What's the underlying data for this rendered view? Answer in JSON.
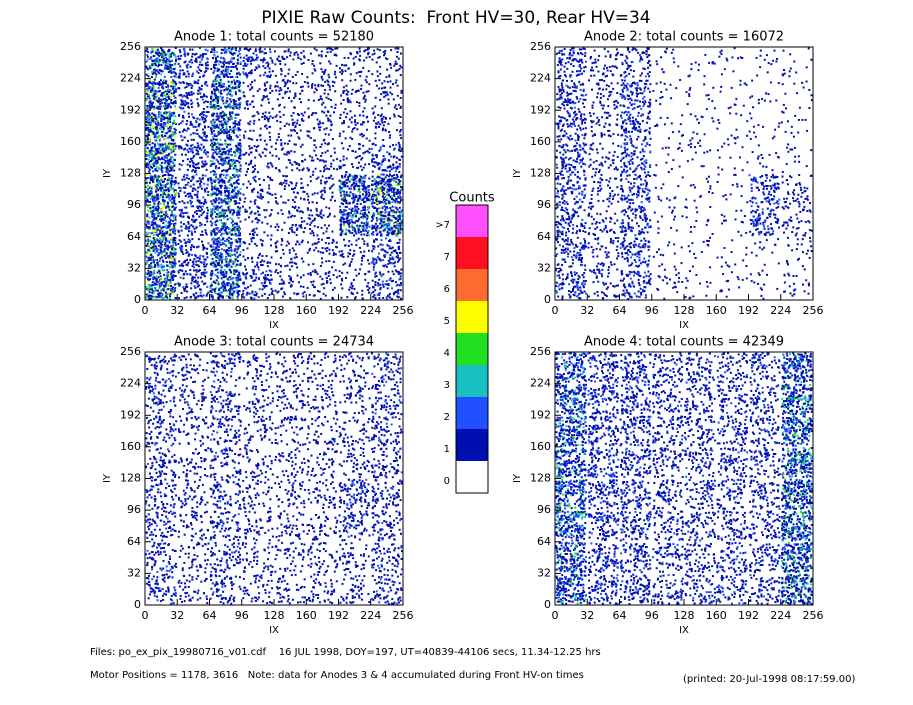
{
  "title": "PIXIE Raw Counts:  Front HV=30, Rear HV=34",
  "chart_data": [
    {
      "type": "heatmap",
      "title": "Anode 1: total counts = 52180",
      "xlabel": "IX",
      "ylabel": "IY",
      "xlim": [
        0,
        256
      ],
      "ylim": [
        0,
        256
      ],
      "xticks": [
        0,
        32,
        64,
        96,
        128,
        160,
        192,
        224,
        256
      ],
      "yticks": [
        0,
        32,
        64,
        96,
        128,
        160,
        192,
        224,
        256
      ],
      "values": [
        [
          5,
          2,
          4,
          2,
          1,
          1,
          1,
          2
        ],
        [
          5,
          2,
          4,
          1,
          1,
          1,
          1,
          2
        ],
        [
          5,
          2,
          4,
          1,
          1,
          1,
          4,
          5
        ],
        [
          5,
          2,
          4,
          1,
          1,
          1,
          4,
          5
        ],
        [
          5,
          2,
          4,
          1,
          1,
          1,
          1,
          2
        ],
        [
          5,
          2,
          4,
          1,
          1,
          1,
          1,
          1
        ],
        [
          5,
          2,
          4,
          1,
          1,
          1,
          1,
          1
        ],
        [
          4,
          2,
          3,
          2,
          1,
          1,
          1,
          1
        ]
      ]
    },
    {
      "type": "heatmap",
      "title": "Anode 2: total counts = 16072",
      "xlabel": "IX",
      "ylabel": "IY",
      "xlim": [
        0,
        256
      ],
      "ylim": [
        0,
        256
      ],
      "xticks": [
        0,
        32,
        64,
        96,
        128,
        160,
        192,
        224,
        256
      ],
      "yticks": [
        0,
        32,
        64,
        96,
        128,
        160,
        192,
        224,
        256
      ],
      "values": [
        [
          2,
          1,
          2,
          0.5,
          0.3,
          0.3,
          0.3,
          0.5
        ],
        [
          2,
          1,
          2,
          0.3,
          0.3,
          0.3,
          0.3,
          0.5
        ],
        [
          2,
          1,
          2,
          0.3,
          0.3,
          0.3,
          2,
          1
        ],
        [
          2,
          1,
          2,
          0.3,
          0.3,
          0.3,
          2,
          1
        ],
        [
          2,
          1,
          2,
          0.3,
          0.3,
          0.3,
          0.3,
          0.3
        ],
        [
          2,
          1,
          2,
          0.3,
          0.3,
          0.3,
          0.3,
          0.3
        ],
        [
          2,
          1,
          2,
          0.3,
          0.3,
          0.3,
          0.3,
          0.3
        ],
        [
          2,
          1,
          1.5,
          0.3,
          0.3,
          0.3,
          0.3,
          0.3
        ]
      ]
    },
    {
      "type": "heatmap",
      "title": "Anode 3: total counts = 24734",
      "xlabel": "IX",
      "ylabel": "IY",
      "xlim": [
        0,
        256
      ],
      "ylim": [
        0,
        256
      ],
      "xticks": [
        0,
        32,
        64,
        96,
        128,
        160,
        192,
        224,
        256
      ],
      "yticks": [
        0,
        32,
        64,
        96,
        128,
        160,
        192,
        224,
        256
      ],
      "values": [
        [
          1.5,
          1,
          1.5,
          1,
          1,
          1,
          1,
          1.5
        ],
        [
          1.5,
          1,
          1.5,
          1,
          1,
          1,
          1,
          1.5
        ],
        [
          1.5,
          1,
          1.5,
          1,
          1,
          1,
          1.5,
          1.5
        ],
        [
          1.5,
          1,
          1.5,
          1,
          1,
          1,
          2,
          1.5
        ],
        [
          1.5,
          1,
          1.5,
          1,
          1,
          1,
          1,
          1.5
        ],
        [
          1.5,
          1,
          1.5,
          1,
          1,
          1,
          1,
          1.5
        ],
        [
          1.5,
          1,
          1.5,
          1,
          1,
          1,
          1,
          1.5
        ],
        [
          1.5,
          1,
          1.5,
          1,
          1,
          1,
          1,
          1.5
        ]
      ]
    },
    {
      "type": "heatmap",
      "title": "Anode 4: total counts = 42349",
      "xlabel": "IX",
      "ylabel": "IY",
      "xlim": [
        0,
        256
      ],
      "ylim": [
        0,
        256
      ],
      "xticks": [
        0,
        32,
        64,
        96,
        128,
        160,
        192,
        224,
        256
      ],
      "yticks": [
        0,
        32,
        64,
        96,
        128,
        160,
        192,
        224,
        256
      ],
      "values": [
        [
          3.5,
          2,
          2,
          1.5,
          1.5,
          1.5,
          1.5,
          4
        ],
        [
          3.5,
          2,
          2,
          1.5,
          1.5,
          1.5,
          1.5,
          4
        ],
        [
          3.5,
          2,
          2,
          1.5,
          1.5,
          1.5,
          1.5,
          4
        ],
        [
          3.5,
          2,
          2,
          1.5,
          1.5,
          1.5,
          1.5,
          4
        ],
        [
          3.5,
          2,
          2,
          1.5,
          1.5,
          1.5,
          1.5,
          4
        ],
        [
          3.5,
          2,
          2,
          1.5,
          1.5,
          1.5,
          1.5,
          4
        ],
        [
          3.5,
          2,
          2,
          1.5,
          1.5,
          1.5,
          1.5,
          4
        ],
        [
          3,
          2,
          2,
          1.5,
          1.5,
          1.5,
          1.5,
          3.5
        ]
      ]
    }
  ],
  "colorbar": {
    "title": "Counts",
    "levels": [
      0,
      1,
      2,
      3,
      4,
      5,
      6,
      7,
      {
        "value": 8,
        "label": ">7"
      }
    ],
    "colors": [
      "#ffffff",
      "#0010b0",
      "#2050ff",
      "#18c0c0",
      "#20e020",
      "#ffff00",
      "#ff6a30",
      "#ff1020",
      "#ff50ff"
    ]
  },
  "footer": {
    "files": "Files: po_ex_pix_19980716_v01.cdf    16 JUL 1998, DOY=197, UT=40839-44106 secs, 11.34-12.25 hrs",
    "motor": "Motor Positions = 1178, 3616   Note: data for Anodes 3 & 4 accumulated during Front HV-on times",
    "printed": "(printed: 20-Jul-1998 08:17:59.00)"
  }
}
